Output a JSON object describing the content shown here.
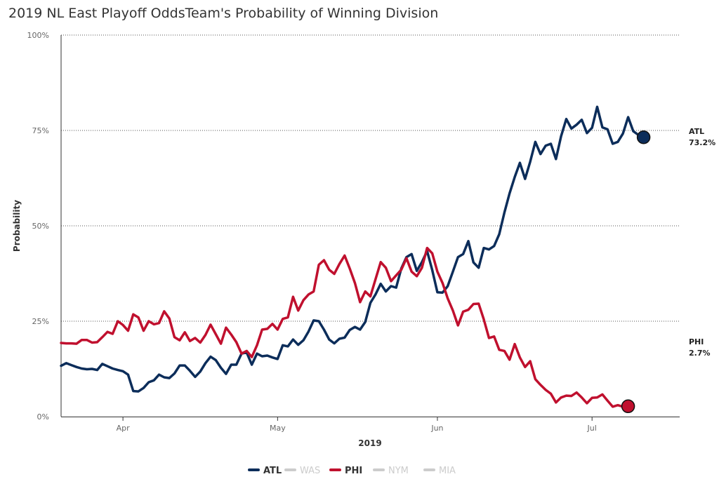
{
  "chart_data": {
    "type": "line",
    "title": "2019 NL East Playoff OddsTeam's Probability of Winning Division",
    "xlabel": "2019",
    "ylabel": "Probability",
    "x_ticks": [
      {
        "label": "Apr",
        "date": "2019-04-01"
      },
      {
        "label": "May",
        "date": "2019-05-01"
      },
      {
        "label": "Jun",
        "date": "2019-06-01"
      },
      {
        "label": "Jul",
        "date": "2019-07-01"
      }
    ],
    "y_ticks": [
      "0%",
      "25%",
      "50%",
      "75%",
      "100%"
    ],
    "xlim": [
      "2019-03-20",
      "2019-07-18"
    ],
    "ylim": [
      0,
      100
    ],
    "grid": "horizontal dotted",
    "legend_position": "bottom",
    "series": [
      {
        "name": "ATL",
        "color": "#0c2d5a",
        "visible": true,
        "end_label": "ATL",
        "end_value_label": "73.2%",
        "points": [
          [
            "2019-03-20",
            13.3
          ],
          [
            "2019-03-21",
            14.0
          ],
          [
            "2019-03-22",
            13.5
          ],
          [
            "2019-03-23",
            13.0
          ],
          [
            "2019-03-24",
            12.6
          ],
          [
            "2019-03-25",
            12.4
          ],
          [
            "2019-03-26",
            12.5
          ],
          [
            "2019-03-27",
            12.2
          ],
          [
            "2019-03-28",
            13.8
          ],
          [
            "2019-03-29",
            13.2
          ],
          [
            "2019-03-30",
            12.6
          ],
          [
            "2019-03-31",
            12.2
          ],
          [
            "2019-04-01",
            11.9
          ],
          [
            "2019-04-02",
            11.0
          ],
          [
            "2019-04-03",
            6.7
          ],
          [
            "2019-04-04",
            6.6
          ],
          [
            "2019-04-05",
            7.5
          ],
          [
            "2019-04-06",
            9.0
          ],
          [
            "2019-04-07",
            9.5
          ],
          [
            "2019-04-08",
            11.0
          ],
          [
            "2019-04-09",
            10.3
          ],
          [
            "2019-04-10",
            10.1
          ],
          [
            "2019-04-11",
            11.3
          ],
          [
            "2019-04-12",
            13.4
          ],
          [
            "2019-04-13",
            13.4
          ],
          [
            "2019-04-14",
            12.0
          ],
          [
            "2019-04-15",
            10.4
          ],
          [
            "2019-04-16",
            11.8
          ],
          [
            "2019-04-17",
            14.0
          ],
          [
            "2019-04-18",
            15.7
          ],
          [
            "2019-04-19",
            14.8
          ],
          [
            "2019-04-20",
            12.8
          ],
          [
            "2019-04-21",
            11.2
          ],
          [
            "2019-04-22",
            13.6
          ],
          [
            "2019-04-23",
            13.6
          ],
          [
            "2019-04-24",
            16.5
          ],
          [
            "2019-04-25",
            16.8
          ],
          [
            "2019-04-26",
            13.6
          ],
          [
            "2019-04-27",
            16.5
          ],
          [
            "2019-04-28",
            15.8
          ],
          [
            "2019-04-29",
            16.0
          ],
          [
            "2019-04-30",
            15.5
          ],
          [
            "2019-05-01",
            15.1
          ],
          [
            "2019-05-02",
            18.7
          ],
          [
            "2019-05-03",
            18.4
          ],
          [
            "2019-05-04",
            20.2
          ],
          [
            "2019-05-05",
            18.8
          ],
          [
            "2019-05-06",
            20.0
          ],
          [
            "2019-05-07",
            22.3
          ],
          [
            "2019-05-08",
            25.2
          ],
          [
            "2019-05-09",
            25.0
          ],
          [
            "2019-05-10",
            22.8
          ],
          [
            "2019-05-11",
            20.2
          ],
          [
            "2019-05-12",
            19.2
          ],
          [
            "2019-05-13",
            20.4
          ],
          [
            "2019-05-14",
            20.7
          ],
          [
            "2019-05-15",
            22.7
          ],
          [
            "2019-05-16",
            23.5
          ],
          [
            "2019-05-17",
            22.8
          ],
          [
            "2019-05-18",
            24.8
          ],
          [
            "2019-05-19",
            29.8
          ],
          [
            "2019-05-20",
            32.0
          ],
          [
            "2019-05-21",
            34.8
          ],
          [
            "2019-05-22",
            32.8
          ],
          [
            "2019-05-23",
            34.2
          ],
          [
            "2019-05-24",
            33.8
          ],
          [
            "2019-05-25",
            38.8
          ],
          [
            "2019-05-26",
            41.8
          ],
          [
            "2019-05-27",
            42.6
          ],
          [
            "2019-05-28",
            38.2
          ],
          [
            "2019-05-29",
            40.5
          ],
          [
            "2019-05-30",
            43.4
          ],
          [
            "2019-05-31",
            38.4
          ],
          [
            "2019-06-01",
            32.6
          ],
          [
            "2019-06-02",
            32.5
          ],
          [
            "2019-06-03",
            34.2
          ],
          [
            "2019-06-04",
            38.0
          ],
          [
            "2019-06-05",
            41.8
          ],
          [
            "2019-06-06",
            42.6
          ],
          [
            "2019-06-07",
            46.0
          ],
          [
            "2019-06-08",
            40.4
          ],
          [
            "2019-06-09",
            39.0
          ],
          [
            "2019-06-10",
            44.2
          ],
          [
            "2019-06-11",
            43.8
          ],
          [
            "2019-06-12",
            44.7
          ],
          [
            "2019-06-13",
            47.8
          ],
          [
            "2019-06-14",
            53.5
          ],
          [
            "2019-06-15",
            58.5
          ],
          [
            "2019-06-16",
            62.8
          ],
          [
            "2019-06-17",
            66.5
          ],
          [
            "2019-06-18",
            62.3
          ],
          [
            "2019-06-19",
            66.8
          ],
          [
            "2019-06-20",
            72.0
          ],
          [
            "2019-06-21",
            68.8
          ],
          [
            "2019-06-22",
            71.0
          ],
          [
            "2019-06-23",
            71.5
          ],
          [
            "2019-06-24",
            67.5
          ],
          [
            "2019-06-25",
            73.5
          ],
          [
            "2019-06-26",
            78.0
          ],
          [
            "2019-06-27",
            75.5
          ],
          [
            "2019-06-28",
            76.5
          ],
          [
            "2019-06-29",
            77.8
          ],
          [
            "2019-06-30",
            74.3
          ],
          [
            "2019-07-01",
            75.7
          ],
          [
            "2019-07-02",
            81.2
          ],
          [
            "2019-07-03",
            75.8
          ],
          [
            "2019-07-04",
            75.3
          ],
          [
            "2019-07-05",
            71.5
          ],
          [
            "2019-07-06",
            72.0
          ],
          [
            "2019-07-07",
            74.2
          ],
          [
            "2019-07-08",
            78.5
          ],
          [
            "2019-07-09",
            74.8
          ],
          [
            "2019-07-10",
            73.8
          ],
          [
            "2019-07-11",
            73.2
          ]
        ]
      },
      {
        "name": "WAS",
        "color": "#cccccc",
        "visible": false,
        "points": []
      },
      {
        "name": "PHI",
        "color": "#c0102e",
        "visible": true,
        "end_label": "PHI",
        "end_value_label": "2.7%",
        "points": [
          [
            "2019-03-20",
            19.3
          ],
          [
            "2019-03-21",
            19.2
          ],
          [
            "2019-03-22",
            19.2
          ],
          [
            "2019-03-23",
            19.1
          ],
          [
            "2019-03-24",
            20.1
          ],
          [
            "2019-03-25",
            20.1
          ],
          [
            "2019-03-26",
            19.4
          ],
          [
            "2019-03-27",
            19.5
          ],
          [
            "2019-03-28",
            20.8
          ],
          [
            "2019-03-29",
            22.2
          ],
          [
            "2019-03-30",
            21.7
          ],
          [
            "2019-03-31",
            25.0
          ],
          [
            "2019-04-01",
            24.0
          ],
          [
            "2019-04-02",
            22.5
          ],
          [
            "2019-04-03",
            26.8
          ],
          [
            "2019-04-04",
            26.0
          ],
          [
            "2019-04-05",
            22.5
          ],
          [
            "2019-04-06",
            25.0
          ],
          [
            "2019-04-07",
            24.2
          ],
          [
            "2019-04-08",
            24.5
          ],
          [
            "2019-04-09",
            27.6
          ],
          [
            "2019-04-10",
            25.7
          ],
          [
            "2019-04-11",
            20.8
          ],
          [
            "2019-04-12",
            20.0
          ],
          [
            "2019-04-13",
            22.1
          ],
          [
            "2019-04-14",
            19.8
          ],
          [
            "2019-04-15",
            20.6
          ],
          [
            "2019-04-16",
            19.4
          ],
          [
            "2019-04-17",
            21.4
          ],
          [
            "2019-04-18",
            24.1
          ],
          [
            "2019-04-19",
            21.6
          ],
          [
            "2019-04-20",
            19.1
          ],
          [
            "2019-04-21",
            23.3
          ],
          [
            "2019-04-22",
            21.5
          ],
          [
            "2019-04-23",
            19.5
          ],
          [
            "2019-04-24",
            16.5
          ],
          [
            "2019-04-25",
            17.2
          ],
          [
            "2019-04-26",
            15.6
          ],
          [
            "2019-04-27",
            18.7
          ],
          [
            "2019-04-28",
            22.8
          ],
          [
            "2019-04-29",
            23.0
          ],
          [
            "2019-04-30",
            24.3
          ],
          [
            "2019-05-01",
            22.8
          ],
          [
            "2019-05-02",
            25.6
          ],
          [
            "2019-05-03",
            26.0
          ],
          [
            "2019-05-04",
            31.4
          ],
          [
            "2019-05-05",
            27.8
          ],
          [
            "2019-05-06",
            30.5
          ],
          [
            "2019-05-07",
            32.0
          ],
          [
            "2019-05-08",
            32.8
          ],
          [
            "2019-05-09",
            39.8
          ],
          [
            "2019-05-10",
            41.0
          ],
          [
            "2019-05-11",
            38.5
          ],
          [
            "2019-05-12",
            37.4
          ],
          [
            "2019-05-13",
            40.0
          ],
          [
            "2019-05-14",
            42.2
          ],
          [
            "2019-05-15",
            38.8
          ],
          [
            "2019-05-16",
            35.0
          ],
          [
            "2019-05-17",
            30.0
          ],
          [
            "2019-05-18",
            32.8
          ],
          [
            "2019-05-19",
            31.5
          ],
          [
            "2019-05-20",
            36.0
          ],
          [
            "2019-05-21",
            40.5
          ],
          [
            "2019-05-22",
            39.0
          ],
          [
            "2019-05-23",
            35.5
          ],
          [
            "2019-05-24",
            37.0
          ],
          [
            "2019-05-25",
            38.5
          ],
          [
            "2019-05-26",
            41.5
          ],
          [
            "2019-05-27",
            38.0
          ],
          [
            "2019-05-28",
            36.8
          ],
          [
            "2019-05-29",
            39.0
          ],
          [
            "2019-05-30",
            44.2
          ],
          [
            "2019-05-31",
            42.8
          ],
          [
            "2019-06-01",
            38.0
          ],
          [
            "2019-06-02",
            35.0
          ],
          [
            "2019-06-03",
            31.0
          ],
          [
            "2019-06-04",
            27.8
          ],
          [
            "2019-06-05",
            23.9
          ],
          [
            "2019-06-06",
            27.5
          ],
          [
            "2019-06-07",
            28.0
          ],
          [
            "2019-06-08",
            29.5
          ],
          [
            "2019-06-09",
            29.6
          ],
          [
            "2019-06-10",
            25.5
          ],
          [
            "2019-06-11",
            20.6
          ],
          [
            "2019-06-12",
            21.0
          ],
          [
            "2019-06-13",
            17.5
          ],
          [
            "2019-06-14",
            17.2
          ],
          [
            "2019-06-15",
            14.9
          ],
          [
            "2019-06-16",
            19.0
          ],
          [
            "2019-06-17",
            15.5
          ],
          [
            "2019-06-18",
            13.0
          ],
          [
            "2019-06-19",
            14.5
          ],
          [
            "2019-06-20",
            9.8
          ],
          [
            "2019-06-21",
            8.3
          ],
          [
            "2019-06-22",
            7.0
          ],
          [
            "2019-06-23",
            6.0
          ],
          [
            "2019-06-24",
            3.7
          ],
          [
            "2019-06-25",
            5.0
          ],
          [
            "2019-06-26",
            5.5
          ],
          [
            "2019-06-27",
            5.4
          ],
          [
            "2019-06-28",
            6.3
          ],
          [
            "2019-06-29",
            5.0
          ],
          [
            "2019-06-30",
            3.5
          ],
          [
            "2019-07-01",
            4.9
          ],
          [
            "2019-07-02",
            5.0
          ],
          [
            "2019-07-03",
            5.8
          ],
          [
            "2019-07-04",
            4.2
          ],
          [
            "2019-07-05",
            2.6
          ],
          [
            "2019-07-06",
            3.0
          ],
          [
            "2019-07-07",
            2.6
          ],
          [
            "2019-07-08",
            2.7
          ]
        ]
      },
      {
        "name": "NYM",
        "color": "#cccccc",
        "visible": false,
        "points": []
      },
      {
        "name": "MIA",
        "color": "#cccccc",
        "visible": false,
        "points": []
      }
    ]
  }
}
